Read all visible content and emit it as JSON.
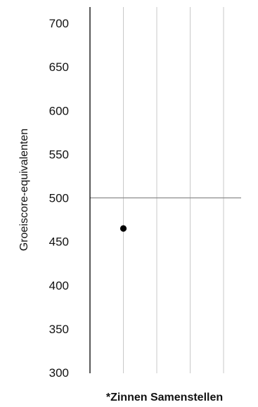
{
  "chart_data": {
    "type": "scatter",
    "ylabel": "Groeiscore-equivalenten",
    "xlabel": "*Zinnen Samenstellen",
    "ylim": [
      300,
      700
    ],
    "yticks": [
      300,
      350,
      400,
      450,
      500,
      550,
      600,
      650,
      700
    ],
    "reference_line": 500,
    "vertical_gridlines": 4,
    "points": [
      {
        "x": 1,
        "y": 465
      }
    ],
    "colors": {
      "axis": "#000000",
      "gridline": "#c8c8c8",
      "reference_line": "#8c8c8c",
      "marker": "#000000"
    }
  }
}
